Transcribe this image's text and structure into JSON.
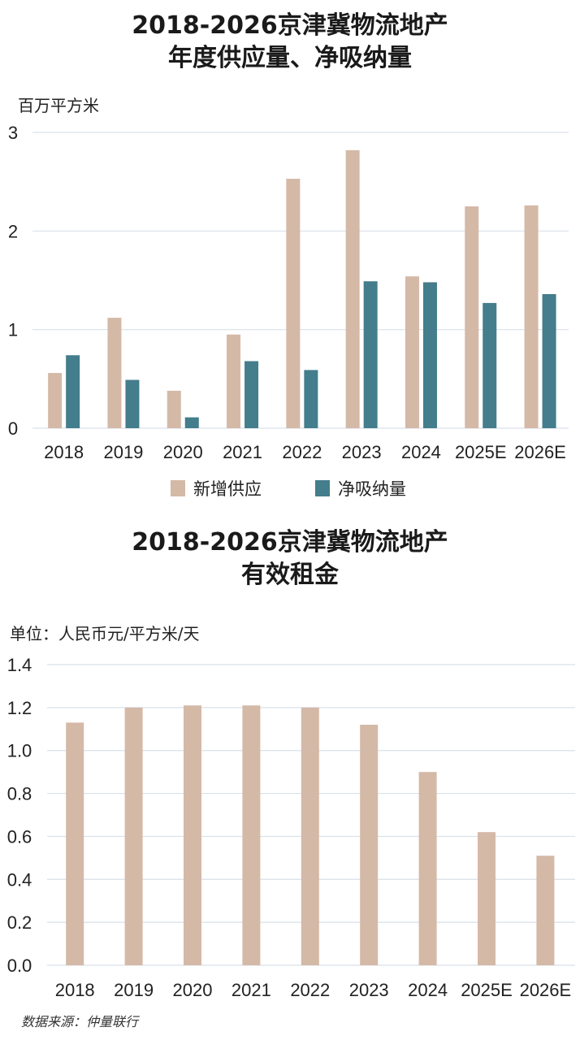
{
  "chart1": {
    "title_line1": "2018-2026京津冀物流地产",
    "title_line2": "年度供应量、净吸纳量",
    "unit": "百万平方米"
  },
  "chart2": {
    "title_line1": "2018-2026京津冀物流地产",
    "title_line2": "有效租金",
    "unit": "单位：人民币元/平方米/天"
  },
  "source": "数据来源：仲量联行",
  "colors": {
    "supply": "#d4b9a7",
    "absorption": "#447d8b",
    "grid": "#d9e1ea"
  },
  "chart_data": [
    {
      "type": "bar",
      "title": "2018-2026京津冀物流地产 年度供应量、净吸纳量",
      "ylabel": "百万平方米",
      "categories": [
        "2018",
        "2019",
        "2020",
        "2021",
        "2022",
        "2023",
        "2024",
        "2025E",
        "2026E"
      ],
      "ylim": [
        0,
        3
      ],
      "yticks": [
        "0",
        "1",
        "2",
        "3"
      ],
      "series": [
        {
          "name": "新增供应",
          "values": [
            0.56,
            1.12,
            0.38,
            0.95,
            2.53,
            2.82,
            1.54,
            2.25,
            2.26
          ]
        },
        {
          "name": "净吸纳量",
          "values": [
            0.74,
            0.49,
            0.11,
            0.68,
            0.59,
            1.49,
            1.48,
            1.27,
            1.36
          ]
        }
      ],
      "legend": "bottom",
      "grid": true
    },
    {
      "type": "bar",
      "title": "2018-2026京津冀物流地产 有效租金",
      "ylabel": "单位：人民币元/平方米/天",
      "categories": [
        "2018",
        "2019",
        "2020",
        "2021",
        "2022",
        "2023",
        "2024",
        "2025E",
        "2026E"
      ],
      "ylim": [
        0,
        1.4
      ],
      "yticks": [
        "0.0",
        "0.2",
        "0.4",
        "0.6",
        "0.8",
        "1.0",
        "1.2",
        "1.4"
      ],
      "values": [
        1.13,
        1.2,
        1.21,
        1.21,
        1.2,
        1.12,
        0.9,
        0.62,
        0.51
      ],
      "legend": "none",
      "grid": true
    }
  ]
}
